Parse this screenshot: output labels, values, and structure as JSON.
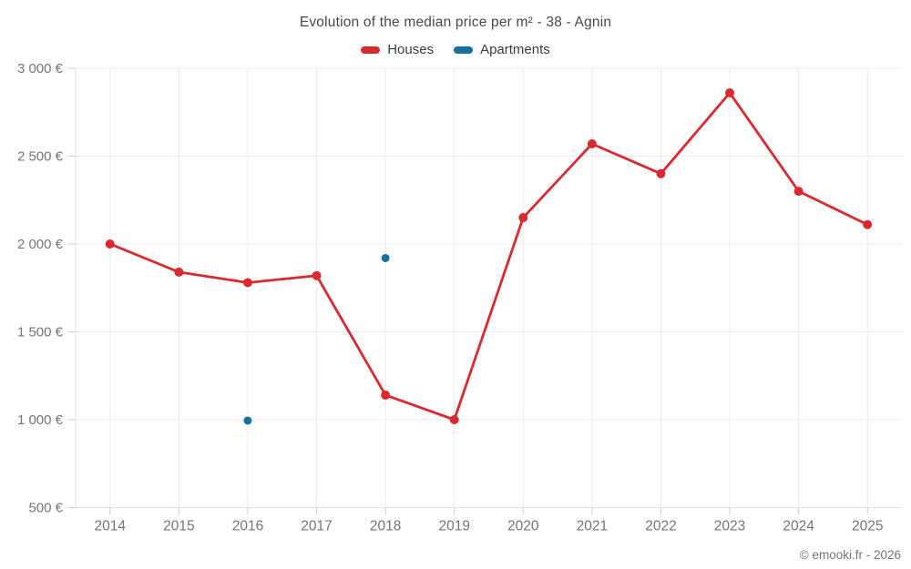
{
  "header": {
    "title": "Evolution of the median price per m² - 38 - Agnin"
  },
  "legend": {
    "items": [
      {
        "label": "Houses",
        "color": "#da2a30"
      },
      {
        "label": "Apartments",
        "color": "#17709e"
      }
    ]
  },
  "footer": {
    "copyright": "© emooki.fr - 2026"
  },
  "chart_data": {
    "type": "line",
    "title": "Evolution of the median price per m² - 38 - Agnin",
    "xlabel": "",
    "ylabel": "",
    "categories": [
      "2014",
      "2015",
      "2016",
      "2017",
      "2018",
      "2019",
      "2020",
      "2021",
      "2022",
      "2023",
      "2024",
      "2025"
    ],
    "series": [
      {
        "name": "Houses",
        "color": "#da2a30",
        "points_only": false,
        "marker_radius": 5,
        "values": [
          2000,
          1840,
          1780,
          1820,
          1140,
          1000,
          2150,
          2570,
          2400,
          2860,
          2300,
          2110
        ]
      },
      {
        "name": "Apartments",
        "color": "#17709e",
        "points_only": true,
        "marker_radius": 4.5,
        "values": [
          null,
          null,
          995,
          null,
          1920,
          null,
          null,
          null,
          null,
          null,
          null,
          null
        ]
      }
    ],
    "ylim": [
      500,
      3000
    ],
    "ytick_step": 500,
    "ytick_values": [
      500,
      1000,
      1500,
      2000,
      2500,
      3000
    ],
    "ytick_labels": [
      "500 €",
      "1 000 €",
      "1 500 €",
      "2 000 €",
      "2 500 €",
      "3 000 €"
    ],
    "grid": true,
    "legend_position": "top",
    "colors": {
      "gridline": "#ececec",
      "frame": "#e2e2e2",
      "tick": "#cccccc",
      "axis_text": "#757575"
    }
  }
}
